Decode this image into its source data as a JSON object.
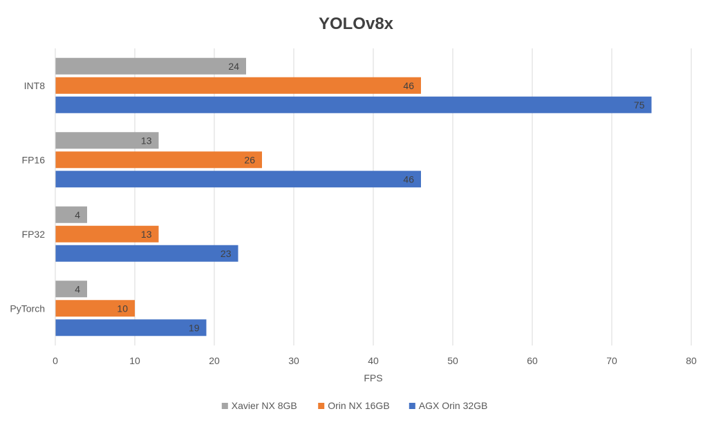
{
  "chart_data": {
    "type": "bar",
    "orientation": "horizontal",
    "title": "YOLOv8x",
    "xlabel": "FPS",
    "ylabel": "",
    "categories": [
      "INT8",
      "FP16",
      "FP32",
      "PyTorch"
    ],
    "series": [
      {
        "name": "Xavier NX 8GB",
        "color": "#a5a5a5",
        "values": [
          24,
          13,
          4,
          4
        ]
      },
      {
        "name": "Orin NX 16GB",
        "color": "#ed7d31",
        "values": [
          46,
          26,
          13,
          10
        ]
      },
      {
        "name": "AGX Orin 32GB",
        "color": "#4472c4",
        "values": [
          75,
          46,
          23,
          19
        ]
      }
    ],
    "xlim": [
      0,
      80
    ],
    "xticks": [
      0,
      10,
      20,
      30,
      40,
      50,
      60,
      70,
      80
    ],
    "grid": true,
    "legend_position": "bottom",
    "data_labels": true
  }
}
